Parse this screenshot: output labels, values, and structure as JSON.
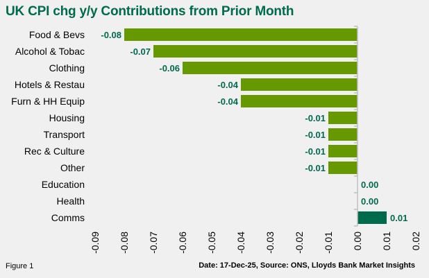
{
  "title": "UK CPI chg y/y Contributions from Prior Month",
  "footer": {
    "figure": "Figure 1",
    "source": "Date: 17-Dec-25,  Source: ONS, Lloyds Bank Market Insights"
  },
  "colors": {
    "background": "#f0f0f0",
    "title": "#006a4d",
    "negative_bar": "#669900",
    "positive_bar": "#006a4d",
    "data_label": "#006a4d",
    "axis": "#bfbfbf"
  },
  "chart_data": {
    "type": "bar",
    "orientation": "horizontal",
    "title": "UK CPI chg y/y Contributions from Prior Month",
    "xlabel": "",
    "ylabel": "",
    "categories": [
      "Food & Bevs",
      "Alcohol & Tobac",
      "Clothing",
      "Hotels & Restau",
      "Furn & HH Equip",
      "Housing",
      "Transport",
      "Rec & Culture",
      "Other",
      "Education",
      "Health",
      "Comms"
    ],
    "values": [
      -0.08,
      -0.07,
      -0.06,
      -0.04,
      -0.04,
      -0.01,
      -0.01,
      -0.01,
      -0.01,
      0.0,
      0.0,
      0.01
    ],
    "data_labels": [
      "-0.08",
      "-0.07",
      "-0.06",
      "-0.04",
      "-0.04",
      "-0.01",
      "-0.01",
      "-0.01",
      "-0.01",
      "0.00",
      "0.00",
      "0.01"
    ],
    "xlim": [
      -0.09,
      0.02
    ],
    "xticks": [
      -0.09,
      -0.08,
      -0.07,
      -0.06,
      -0.05,
      -0.04,
      -0.03,
      -0.02,
      -0.01,
      0.0,
      0.01,
      0.02
    ],
    "xtick_labels": [
      "-0.09",
      "-0.08",
      "-0.07",
      "-0.06",
      "-0.05",
      "-0.04",
      "-0.03",
      "-0.02",
      "-0.01",
      "0.00",
      "0.01",
      "0.02"
    ],
    "grid": false,
    "legend": "none"
  }
}
